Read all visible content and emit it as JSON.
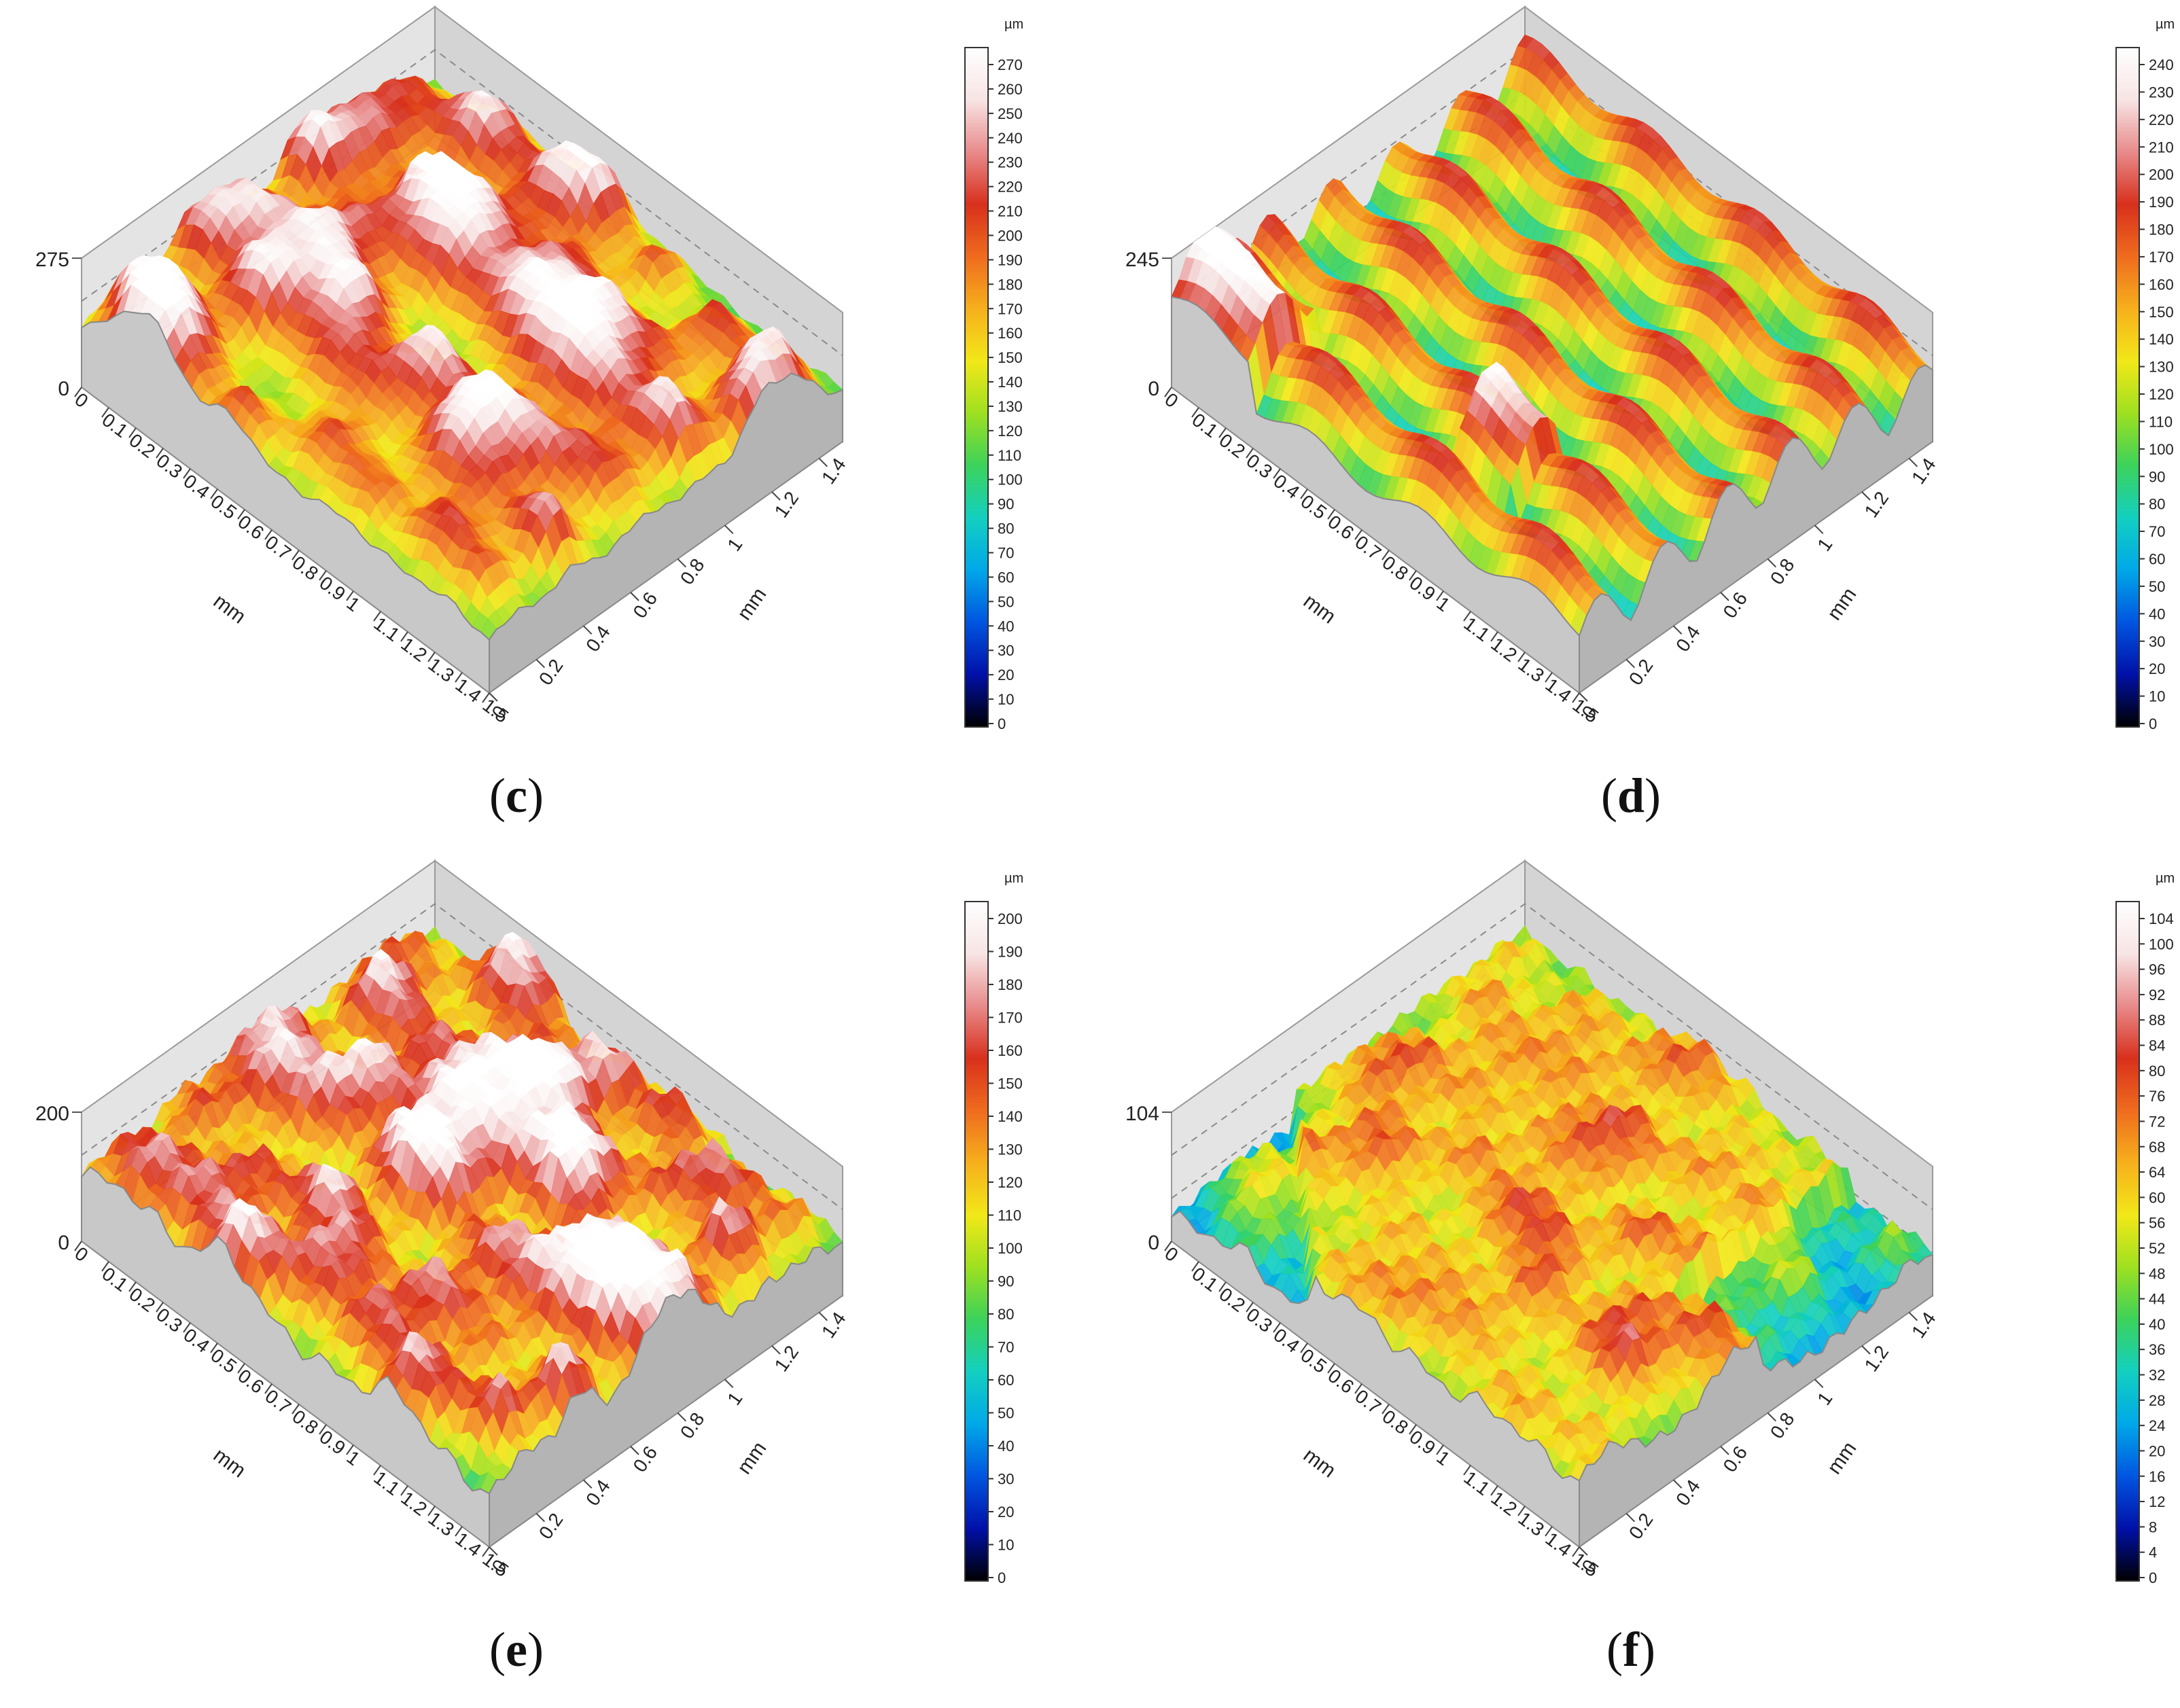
{
  "colors": {
    "colormap": [
      "#000000",
      "#0010a8",
      "#0055e0",
      "#00a8e8",
      "#12d0c0",
      "#3cd25a",
      "#9ee020",
      "#f2e818",
      "#f6b01c",
      "#ef6c1e",
      "#d8301c",
      "#e88a8a",
      "#f8e4e4",
      "#ffffff"
    ]
  },
  "chart_data": [
    {
      "type": "heatmap",
      "panel_label": "c",
      "z_max_label": "275",
      "z_zero_label": "0",
      "x_axis": {
        "label": "mm",
        "ticks": [
          "0",
          "0.1",
          "0.2",
          "0.3",
          "0.4",
          "0.5",
          "0.6",
          "0.7",
          "0.8",
          "0.9",
          "1",
          "1.1",
          "1.2",
          "1.3",
          "1.4",
          "1.5"
        ],
        "range": [
          0,
          1.5
        ]
      },
      "y_axis": {
        "label": "mm",
        "ticks": [
          "0",
          "0.2",
          "0.4",
          "0.6",
          "0.8",
          "1",
          "1.2",
          "1.4"
        ],
        "range": [
          0,
          1.4
        ]
      },
      "colorbar": {
        "unit": "µm",
        "range": [
          0,
          270
        ],
        "ticks": [
          "0",
          "10",
          "20",
          "30",
          "40",
          "50",
          "60",
          "70",
          "80",
          "90",
          "100",
          "110",
          "120",
          "130",
          "140",
          "150",
          "160",
          "170",
          "180",
          "190",
          "200",
          "210",
          "220",
          "230",
          "240",
          "250",
          "260",
          "270"
        ]
      },
      "pattern": "dome"
    },
    {
      "type": "heatmap",
      "panel_label": "d",
      "z_max_label": "245",
      "z_zero_label": "0",
      "x_axis": {
        "label": "mm",
        "ticks": [
          "0",
          "0.1",
          "0.2",
          "0.3",
          "0.4",
          "0.5",
          "0.6",
          "0.7",
          "0.8",
          "0.9",
          "1",
          "1.1",
          "1.2",
          "1.3",
          "1.4",
          "1.5"
        ],
        "range": [
          0,
          1.5
        ]
      },
      "y_axis": {
        "label": "mm",
        "ticks": [
          "0",
          "0.2",
          "0.4",
          "0.6",
          "0.8",
          "1",
          "1.2",
          "1.4"
        ],
        "range": [
          0,
          1.4
        ]
      },
      "colorbar": {
        "unit": "µm",
        "range": [
          0,
          240
        ],
        "ticks": [
          "0",
          "10",
          "20",
          "30",
          "40",
          "50",
          "60",
          "70",
          "80",
          "90",
          "100",
          "110",
          "120",
          "130",
          "140",
          "150",
          "160",
          "170",
          "180",
          "190",
          "200",
          "210",
          "220",
          "230",
          "240"
        ]
      },
      "pattern": "ridge"
    },
    {
      "type": "heatmap",
      "panel_label": "e",
      "z_max_label": "200",
      "z_zero_label": "0",
      "x_axis": {
        "label": "mm",
        "ticks": [
          "0",
          "0.1",
          "0.2",
          "0.3",
          "0.4",
          "0.5",
          "0.6",
          "0.7",
          "0.8",
          "0.9",
          "1",
          "1.1",
          "1.2",
          "1.3",
          "1.4",
          "1.5"
        ],
        "range": [
          0,
          1.5
        ]
      },
      "y_axis": {
        "label": "mm",
        "ticks": [
          "0",
          "0.2",
          "0.4",
          "0.6",
          "0.8",
          "1",
          "1.2",
          "1.4"
        ],
        "range": [
          0,
          1.4
        ]
      },
      "colorbar": {
        "unit": "µm",
        "range": [
          0,
          200
        ],
        "ticks": [
          "0",
          "10",
          "20",
          "30",
          "40",
          "50",
          "60",
          "70",
          "80",
          "90",
          "100",
          "110",
          "120",
          "130",
          "140",
          "150",
          "160",
          "170",
          "180",
          "190",
          "200"
        ]
      },
      "pattern": "dome-rough"
    },
    {
      "type": "heatmap",
      "panel_label": "f",
      "z_max_label": "104",
      "z_zero_label": "0",
      "x_axis": {
        "label": "mm",
        "ticks": [
          "0",
          "0.1",
          "0.2",
          "0.3",
          "0.4",
          "0.5",
          "0.6",
          "0.7",
          "0.8",
          "0.9",
          "1",
          "1.1",
          "1.2",
          "1.3",
          "1.4",
          "1.5"
        ],
        "range": [
          0,
          1.5
        ]
      },
      "y_axis": {
        "label": "mm",
        "ticks": [
          "0",
          "0.2",
          "0.4",
          "0.6",
          "0.8",
          "1",
          "1.2",
          "1.4"
        ],
        "range": [
          0,
          1.4
        ]
      },
      "colorbar": {
        "unit": "µm",
        "range": [
          0,
          104
        ],
        "ticks": [
          "0",
          "4",
          "8",
          "12",
          "16",
          "20",
          "24",
          "28",
          "32",
          "36",
          "40",
          "44",
          "48",
          "52",
          "56",
          "60",
          "64",
          "68",
          "72",
          "76",
          "80",
          "84",
          "88",
          "92",
          "96",
          "100",
          "104"
        ]
      },
      "pattern": "flat"
    }
  ]
}
